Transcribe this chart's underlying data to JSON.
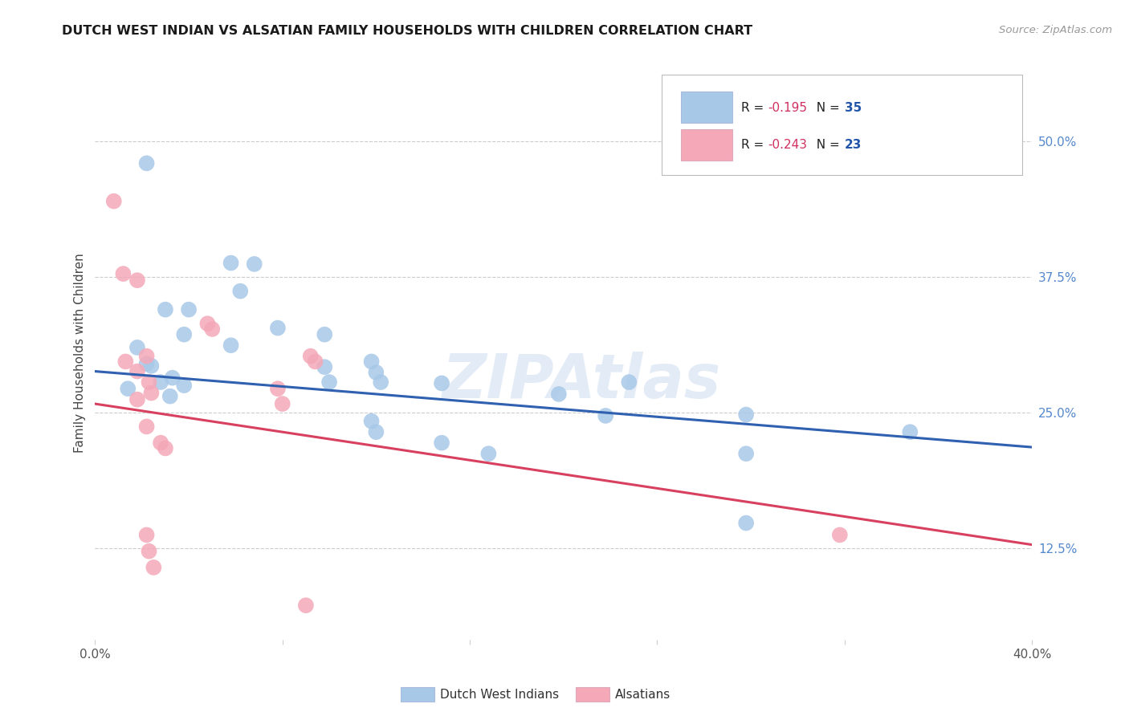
{
  "title": "DUTCH WEST INDIAN VS ALSATIAN FAMILY HOUSEHOLDS WITH CHILDREN CORRELATION CHART",
  "source": "Source: ZipAtlas.com",
  "ylabel": "Family Households with Children",
  "ytick_labels": [
    "12.5%",
    "25.0%",
    "37.5%",
    "50.0%"
  ],
  "ytick_values": [
    0.125,
    0.25,
    0.375,
    0.5
  ],
  "xlim": [
    0.0,
    0.4
  ],
  "ylim": [
    0.04,
    0.57
  ],
  "legend_blue_r": "-0.195",
  "legend_blue_n": "35",
  "legend_pink_r": "-0.243",
  "legend_pink_n": "23",
  "legend_label_blue": "Dutch West Indians",
  "legend_label_pink": "Alsatians",
  "watermark": "ZIPAtlas",
  "blue_color": "#a8c8e8",
  "pink_color": "#f4a8b8",
  "blue_line_color": "#3060b0",
  "pink_line_color": "#d84060",
  "blue_scatter": [
    [
      0.022,
      0.48
    ],
    [
      0.018,
      0.31
    ],
    [
      0.03,
      0.345
    ],
    [
      0.04,
      0.345
    ],
    [
      0.032,
      0.265
    ],
    [
      0.038,
      0.275
    ],
    [
      0.022,
      0.295
    ],
    [
      0.024,
      0.293
    ],
    [
      0.028,
      0.278
    ],
    [
      0.014,
      0.272
    ],
    [
      0.033,
      0.282
    ],
    [
      0.038,
      0.322
    ],
    [
      0.058,
      0.388
    ],
    [
      0.068,
      0.387
    ],
    [
      0.062,
      0.362
    ],
    [
      0.058,
      0.312
    ],
    [
      0.078,
      0.328
    ],
    [
      0.098,
      0.322
    ],
    [
      0.098,
      0.292
    ],
    [
      0.1,
      0.278
    ],
    [
      0.118,
      0.297
    ],
    [
      0.12,
      0.287
    ],
    [
      0.122,
      0.278
    ],
    [
      0.148,
      0.277
    ],
    [
      0.148,
      0.222
    ],
    [
      0.118,
      0.242
    ],
    [
      0.12,
      0.232
    ],
    [
      0.168,
      0.212
    ],
    [
      0.228,
      0.278
    ],
    [
      0.218,
      0.247
    ],
    [
      0.278,
      0.248
    ],
    [
      0.278,
      0.212
    ],
    [
      0.278,
      0.148
    ],
    [
      0.348,
      0.232
    ],
    [
      0.198,
      0.267
    ]
  ],
  "pink_scatter": [
    [
      0.008,
      0.445
    ],
    [
      0.012,
      0.378
    ],
    [
      0.018,
      0.372
    ],
    [
      0.013,
      0.297
    ],
    [
      0.018,
      0.288
    ],
    [
      0.022,
      0.302
    ],
    [
      0.023,
      0.278
    ],
    [
      0.024,
      0.268
    ],
    [
      0.018,
      0.262
    ],
    [
      0.048,
      0.332
    ],
    [
      0.05,
      0.327
    ],
    [
      0.078,
      0.272
    ],
    [
      0.08,
      0.258
    ],
    [
      0.092,
      0.302
    ],
    [
      0.094,
      0.297
    ],
    [
      0.022,
      0.237
    ],
    [
      0.028,
      0.222
    ],
    [
      0.03,
      0.217
    ],
    [
      0.022,
      0.137
    ],
    [
      0.023,
      0.122
    ],
    [
      0.025,
      0.107
    ],
    [
      0.09,
      0.072
    ],
    [
      0.318,
      0.137
    ]
  ],
  "blue_trendline_x": [
    0.0,
    0.4
  ],
  "blue_trendline_y": [
    0.288,
    0.218
  ],
  "pink_trendline_x": [
    0.0,
    0.4
  ],
  "pink_trendline_y": [
    0.258,
    0.128
  ]
}
